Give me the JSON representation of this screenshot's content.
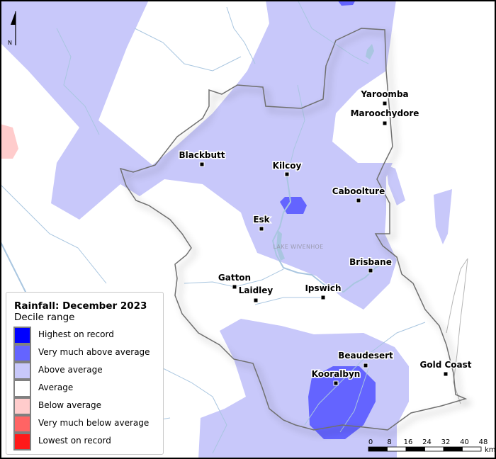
{
  "legend": {
    "title": "Rainfall: December 2023",
    "subtitle": "Decile range",
    "items": [
      {
        "label": "Highest on record",
        "color": "#0000ff"
      },
      {
        "label": "Very much above average",
        "color": "#6464ff"
      },
      {
        "label": "Above average",
        "color": "#c8c8fa"
      },
      {
        "label": "Average",
        "color": "#ffffff"
      },
      {
        "label": "Below average",
        "color": "#ffcccc"
      },
      {
        "label": "Very much below average",
        "color": "#ff6464"
      },
      {
        "label": "Lowest on record",
        "color": "#ff1a1a"
      }
    ]
  },
  "towns": [
    "Yaroomba",
    "Maroochydore",
    "Blackbutt",
    "Kilcoy",
    "Caboolture",
    "Esk",
    "Brisbane",
    "Gatton",
    "Laidley",
    "Ipswich",
    "Beaudesert",
    "Kooralbyn",
    "Gold Coast"
  ],
  "lake_label": "LAKE WIVENHOE",
  "north_label": "N",
  "scale": {
    "ticks": [
      "0",
      "8",
      "16",
      "24",
      "32",
      "40",
      "48"
    ],
    "unit": "km"
  },
  "colors": {
    "river": "#a9c6e0",
    "boundary": "#707070"
  }
}
